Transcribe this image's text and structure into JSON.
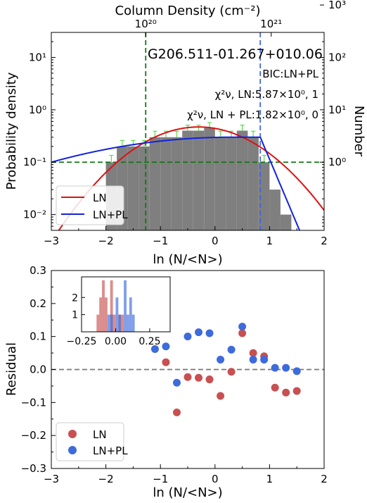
{
  "colors": {
    "bar_fill": "#7f7f7f",
    "errorbar": "#55dd44",
    "ln_line": "#dd1111",
    "lnpl_line": "#1122dd",
    "ref_lines": "#117711",
    "pl_break_line": "#4466dd",
    "residual_ln": "#c85050",
    "residual_lnpl": "#3d6bdb",
    "zero_line": "#777777"
  },
  "chart_data": [
    {
      "type": "bar",
      "panel": "top",
      "title": "G206.511-01.267+010.06",
      "xlabel": "ln (N/<N>)",
      "ylabel": "Probability density",
      "ylabel_right": "Number",
      "xlabel_top": "Column Density (cm⁻²)",
      "top_ticks": [
        {
          "label": "10²⁰",
          "lnx": -1.27
        },
        {
          "label": "10²¹",
          "lnx": 1.03
        }
      ],
      "xlim": [
        -3,
        2
      ],
      "ylim": [
        0.005,
        30
      ],
      "yscale": "log",
      "yticks": [
        {
          "v": 0.01,
          "label": "10⁻²"
        },
        {
          "v": 0.1,
          "label": "10⁻¹"
        },
        {
          "v": 1,
          "label": "10⁰"
        },
        {
          "v": 10,
          "label": "10¹"
        }
      ],
      "yticks_right": [
        {
          "v": 0.1,
          "label": "10⁰"
        },
        {
          "v": 1,
          "label": "10¹"
        },
        {
          "v": 10,
          "label": "10²"
        },
        {
          "v": 100,
          "label": "10³"
        }
      ],
      "xticks": [
        -3,
        -2,
        -1,
        0,
        1,
        2
      ],
      "annotations": [
        "BIC:LN+PL",
        "χ²ν, LN:5.87×10⁰, 1",
        "χ²ν, LN + PL:1.82×10⁰, 0"
      ],
      "bin_width": 0.2,
      "bin_centers": [
        -2.1,
        -1.9,
        -1.7,
        -1.5,
        -1.3,
        -1.1,
        -0.9,
        -0.7,
        -0.5,
        -0.3,
        -0.1,
        0.1,
        0.3,
        0.5,
        0.7,
        0.9,
        1.1,
        1.3,
        1.5
      ],
      "values": [
        0.0045,
        0.1,
        0.2,
        0.2,
        0.2,
        0.3,
        0.3,
        0.3,
        0.4,
        0.4,
        0.45,
        0.3,
        0.3,
        0.4,
        0.3,
        0.1,
        0.03,
        0.01,
        0.0025
      ],
      "errors": [
        0,
        0.035,
        0.06,
        0.06,
        0.06,
        0.09,
        0.09,
        0.09,
        0.11,
        0.11,
        0.12,
        0.09,
        0.09,
        0.11,
        0.09,
        0.035,
        0,
        0,
        0
      ],
      "hlines": [
        0.1
      ],
      "vlines": [
        {
          "x": -1.27,
          "style": "green-dashed"
        },
        {
          "x": 0.83,
          "style": "blue-dashed"
        }
      ],
      "series": [
        {
          "name": "LN",
          "model": "lognormal",
          "mu": -0.3,
          "sigma": 0.85,
          "amplitude": 0.47
        },
        {
          "name": "LN+PL",
          "model": "lognormal+powerlaw",
          "x_start": -3,
          "y_start": 0.1,
          "x_peak": 0.3,
          "y_peak": 0.3,
          "x_break": 0.83,
          "y_break": 0.3,
          "x_end": 1.55,
          "y_end": 0.005
        }
      ],
      "legend": {
        "position": "bottom-left",
        "entries": [
          "LN",
          "LN+PL"
        ]
      }
    },
    {
      "type": "scatter",
      "panel": "bottom",
      "xlabel": "ln (N/<N>)",
      "ylabel": "Residual",
      "xlim": [
        -3,
        2
      ],
      "ylim": [
        -0.3,
        0.3
      ],
      "xticks": [
        -3,
        -2,
        -1,
        0,
        1,
        2
      ],
      "yticks": [
        -0.3,
        -0.2,
        -0.1,
        0.0,
        0.1,
        0.2,
        0.3
      ],
      "hlines": [
        0.0
      ],
      "series": [
        {
          "name": "LN",
          "x": [
            -0.9,
            -0.7,
            -0.5,
            -0.3,
            -0.1,
            0.1,
            0.3,
            0.5,
            0.7,
            0.9,
            1.1,
            1.3,
            1.5
          ],
          "y": [
            0.022,
            -0.13,
            -0.023,
            -0.025,
            -0.03,
            -0.08,
            -0.007,
            0.11,
            0.05,
            0.04,
            -0.055,
            -0.07,
            -0.065
          ]
        },
        {
          "name": "LN+PL",
          "x": [
            -1.1,
            -0.9,
            -0.7,
            -0.5,
            -0.3,
            -0.1,
            0.1,
            0.3,
            0.5,
            0.7,
            0.9,
            1.1,
            1.3,
            1.5
          ],
          "y": [
            0.062,
            0.07,
            -0.04,
            0.1,
            0.113,
            0.11,
            0.03,
            0.06,
            0.13,
            0.03,
            0.03,
            0.005,
            0.005,
            -0.005
          ]
        }
      ],
      "legend": {
        "position": "bottom-left",
        "entries": [
          "LN",
          "LN+PL"
        ]
      },
      "inset": {
        "type": "histogram",
        "position": "top-left",
        "xlim": [
          -0.25,
          0.4
        ],
        "ylim": [
          0,
          3.2
        ],
        "xticks": [
          -0.25,
          0.0,
          0.25
        ],
        "xtick_labels": [
          "−0.25",
          "0.00",
          "0.25"
        ],
        "yticks": [
          1,
          2
        ],
        "series": [
          {
            "name": "LN",
            "bins": [
              {
                "x": -0.14,
                "w": 0.02,
                "c": 1
              },
              {
                "x": -0.12,
                "w": 0.02,
                "c": 2
              },
              {
                "x": -0.1,
                "w": 0.02,
                "c": 3
              },
              {
                "x": -0.08,
                "w": 0.02,
                "c": 2
              },
              {
                "x": -0.04,
                "w": 0.02,
                "c": 3
              },
              {
                "x": -0.02,
                "w": 0.02,
                "c": 1
              },
              {
                "x": 0.02,
                "w": 0.02,
                "c": 1
              },
              {
                "x": 0.04,
                "w": 0.02,
                "c": 1
              }
            ]
          },
          {
            "name": "LN+PL",
            "bins": [
              {
                "x": -0.06,
                "w": 0.02,
                "c": 1
              },
              {
                "x": -0.04,
                "w": 0.02,
                "c": 1
              },
              {
                "x": 0.0,
                "w": 0.02,
                "c": 2
              },
              {
                "x": 0.02,
                "w": 0.02,
                "c": 1
              },
              {
                "x": 0.06,
                "w": 0.02,
                "c": 3
              },
              {
                "x": 0.08,
                "w": 0.02,
                "c": 1
              },
              {
                "x": 0.1,
                "w": 0.02,
                "c": 2
              },
              {
                "x": 0.12,
                "w": 0.02,
                "c": 1
              }
            ]
          }
        ]
      }
    }
  ]
}
